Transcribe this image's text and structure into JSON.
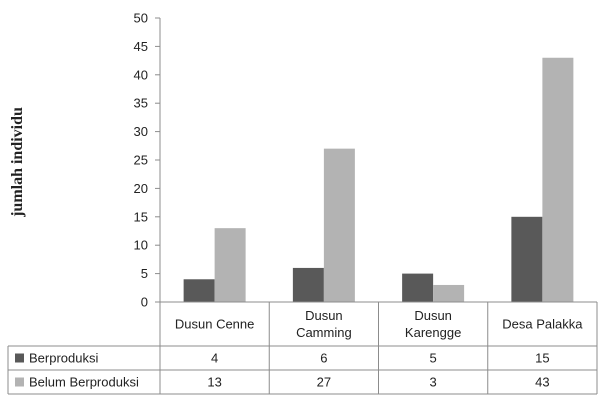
{
  "chart_data": {
    "type": "bar",
    "ylabel": "jumlah individu",
    "ylim": [
      0,
      50
    ],
    "yticks": [
      0,
      5,
      10,
      15,
      20,
      25,
      30,
      35,
      40,
      45,
      50
    ],
    "grid": false,
    "categories": [
      [
        "Dusun Cenne"
      ],
      [
        "Dusun",
        "Camming"
      ],
      [
        "Dusun",
        "Karengge"
      ],
      [
        "Desa Palakka"
      ]
    ],
    "series": [
      {
        "name": "Berproduksi",
        "values": [
          4,
          6,
          5,
          15
        ],
        "color": "#595959"
      },
      {
        "name": "Belum Berproduksi",
        "values": [
          13,
          27,
          3,
          43
        ],
        "color": "#b3b3b3"
      }
    ],
    "data_table": true
  }
}
